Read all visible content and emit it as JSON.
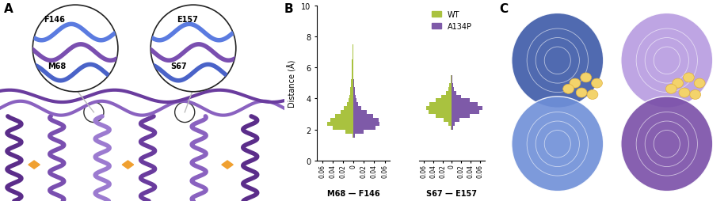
{
  "panel_labels": [
    "A",
    "B",
    "C"
  ],
  "residue_labels": {
    "left_inset": [
      "F146",
      "M68"
    ],
    "right_inset": [
      "E157",
      "S67"
    ]
  },
  "legend": "upper center",
  "chart_data": [
    {
      "type": "histogram",
      "orientation": "horizontal",
      "xlabel": "M68 — F146",
      "ylabel": "Distance (Å)",
      "ylim": [
        0,
        10
      ],
      "yticks": [
        0,
        2,
        4,
        6,
        8,
        10
      ],
      "xlim": [
        0,
        0.07
      ],
      "bins": [
        0,
        0.25,
        0.5,
        0.75,
        1,
        1.25,
        1.5,
        1.75,
        2,
        2.25,
        2.5,
        2.75,
        3,
        3.25,
        3.5,
        3.75,
        4,
        4.25,
        4.5,
        4.75,
        5,
        5.25,
        5.5,
        5.75,
        6,
        6.25,
        6.5,
        6.75,
        7,
        7.25,
        7.5,
        7.75,
        8,
        8.25,
        8.5,
        8.75,
        9,
        9.25,
        9.5,
        9.75,
        10
      ],
      "series": [
        {
          "name": "WT",
          "color": "#a9c23f",
          "xticks": [
            0.06,
            0.04,
            0.02,
            0
          ],
          "values": [
            0,
            0,
            0,
            0,
            0,
            0,
            0.002,
            0.015,
            0.04,
            0.05,
            0.045,
            0.035,
            0.025,
            0.018,
            0.013,
            0.01,
            0.008,
            0.007,
            0.006,
            0.005,
            0.005,
            0.004,
            0.004,
            0.003,
            0.003,
            0.003,
            0.002,
            0.002,
            0.002,
            0.002,
            0.001,
            0.001,
            0.001,
            0.001,
            0.001,
            0.001,
            0.0005,
            0,
            0,
            0
          ]
        },
        {
          "name": "A134P",
          "color": "#7e5aa8",
          "xticks": [
            0.02,
            0.04,
            0.06
          ],
          "values": [
            0,
            0,
            0,
            0,
            0,
            0,
            0.003,
            0.02,
            0.042,
            0.05,
            0.048,
            0.038,
            0.025,
            0.015,
            0.009,
            0.006,
            0.004,
            0.003,
            0.002,
            0.001,
            0.0005,
            0,
            0,
            0,
            0,
            0,
            0,
            0,
            0,
            0,
            0,
            0,
            0,
            0,
            0,
            0,
            0,
            0,
            0,
            0
          ]
        }
      ]
    },
    {
      "type": "histogram",
      "orientation": "horizontal",
      "xlabel": "S67 — E157",
      "ylim": [
        0,
        10
      ],
      "yticks": [
        0,
        2,
        4,
        6,
        8,
        10
      ],
      "xlim": [
        0,
        0.07
      ],
      "bins": [
        0,
        0.25,
        0.5,
        0.75,
        1,
        1.25,
        1.5,
        1.75,
        2,
        2.25,
        2.5,
        2.75,
        3,
        3.25,
        3.5,
        3.75,
        4,
        4.25,
        4.5,
        4.75,
        5,
        5.25,
        5.5,
        5.75,
        6,
        6.25,
        6.5,
        6.75,
        7,
        7.25,
        7.5,
        7.75,
        8,
        8.25,
        8.5,
        8.75,
        9,
        9.25,
        9.5,
        9.75,
        10
      ],
      "series": [
        {
          "name": "WT",
          "color": "#a9c23f",
          "xticks": [
            0.06,
            0.04,
            0.02,
            0
          ],
          "values": [
            0,
            0,
            0,
            0,
            0,
            0,
            0,
            0.001,
            0.003,
            0.008,
            0.018,
            0.035,
            0.05,
            0.055,
            0.048,
            0.035,
            0.022,
            0.013,
            0.008,
            0.005,
            0.003,
            0.002,
            0.0015,
            0.001,
            0.0008,
            0.0005,
            0.0003,
            0,
            0,
            0,
            0,
            0,
            0,
            0,
            0,
            0,
            0,
            0,
            0,
            0
          ]
        },
        {
          "name": "A134P",
          "color": "#7e5aa8",
          "xticks": [
            0.02,
            0.04,
            0.06
          ],
          "values": [
            0,
            0,
            0,
            0,
            0,
            0,
            0,
            0,
            0.002,
            0.006,
            0.017,
            0.038,
            0.058,
            0.065,
            0.055,
            0.038,
            0.02,
            0.009,
            0.004,
            0.002,
            0.001,
            0.0005,
            0,
            0,
            0,
            0,
            0,
            0,
            0,
            0,
            0,
            0,
            0,
            0,
            0,
            0,
            0,
            0,
            0,
            0
          ]
        }
      ]
    }
  ]
}
